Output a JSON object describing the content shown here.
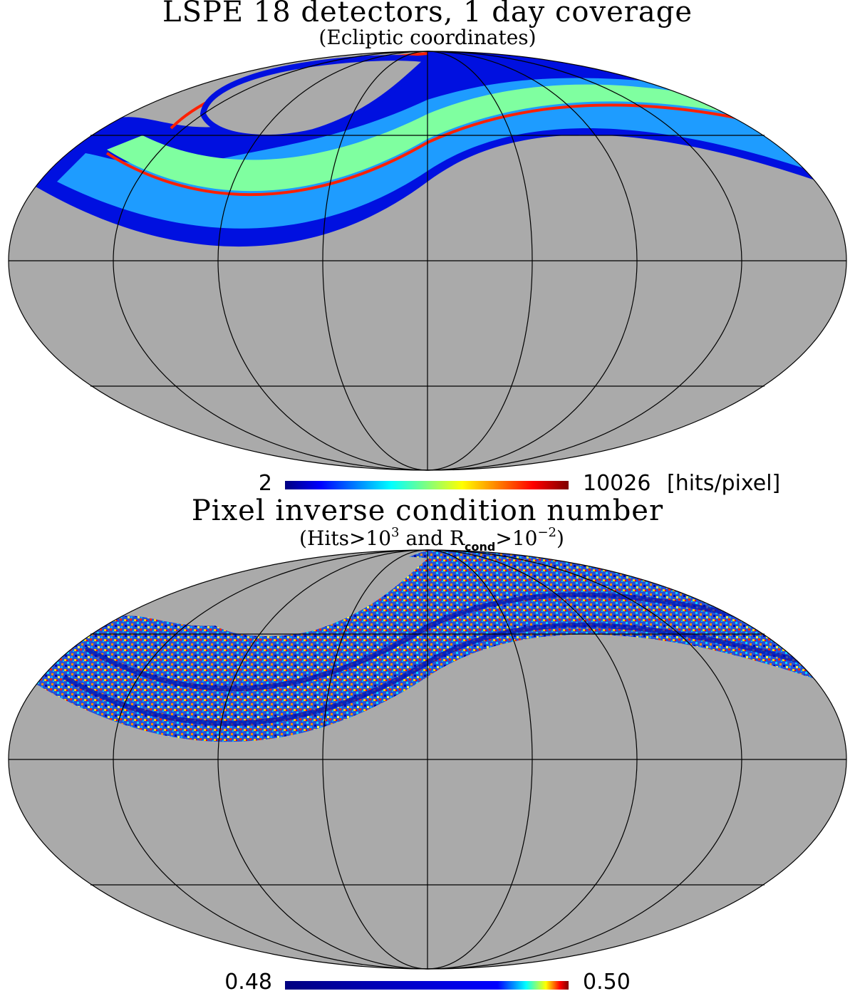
{
  "chart_data": [
    {
      "type": "heatmap",
      "projection": "mollweide",
      "title": "LSPE 18 detectors, 1 day coverage",
      "subtitle": "(Ecliptic coordinates)",
      "colorbar": {
        "min_label": "2",
        "max_label": "10026",
        "unit": "[hits/pixel]",
        "min": 2,
        "max": 10026,
        "colormap": "jet"
      },
      "background_color": "#aaaaaa",
      "graticule": true,
      "data_description": "coverage band in the northern hemisphere; outer edges high (red), broad cyan/green band, dark blue lower edge"
    },
    {
      "type": "heatmap",
      "projection": "mollweide",
      "title": "Pixel inverse condition number",
      "subtitle_parts": {
        "open": "(Hits>10",
        "sup1": "3",
        "mid": " and R",
        "sub": "cond",
        "gt": ">10",
        "sup2": "−2",
        "close": ")"
      },
      "colorbar": {
        "min_label": "0.48",
        "max_label": "0.50",
        "min": 0.48,
        "max": 0.5,
        "colormap": "jet"
      },
      "background_color": "#aaaaaa",
      "graticule": true
    }
  ]
}
